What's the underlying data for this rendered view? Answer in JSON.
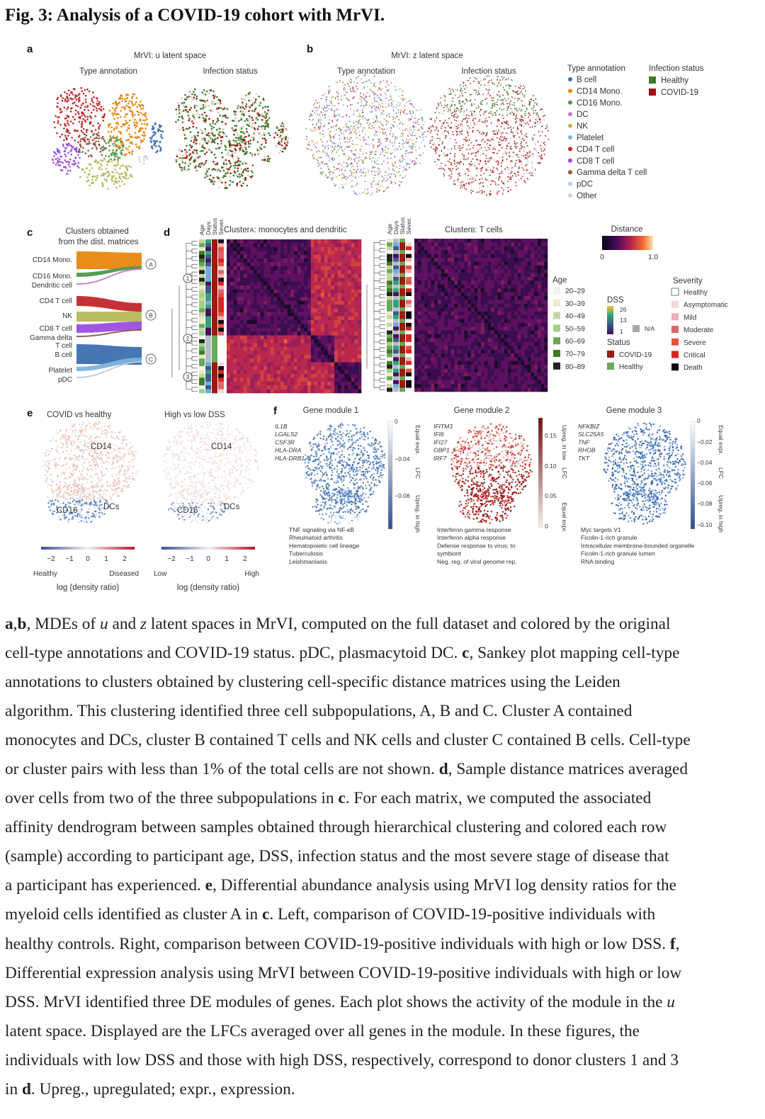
{
  "title": "Fig. 3: Analysis of a COVID-19 cohort with MrVI.",
  "panel_a": {
    "letter": "a",
    "title": "MrVI: u latent space",
    "sub1": "Type annotation",
    "sub2": "Infection status"
  },
  "panel_b": {
    "letter": "b",
    "title": "MrVI: z latent space",
    "sub1": "Type annotation",
    "sub2": "Infection status"
  },
  "legend_type": {
    "title": "Type annotation",
    "items": [
      {
        "label": "B cell",
        "color": "#3c6fb0"
      },
      {
        "label": "CD14 Mono.",
        "color": "#e8860f"
      },
      {
        "label": "CD16 Mono.",
        "color": "#4e9a4e"
      },
      {
        "label": "DC",
        "color": "#c77cc0"
      },
      {
        "label": "NK",
        "color": "#b5b85a"
      },
      {
        "label": "Platelet",
        "color": "#7fb2d9"
      },
      {
        "label": "CD4 T cell",
        "color": "#c0282b"
      },
      {
        "label": "CD8 T cell",
        "color": "#9b4de0"
      },
      {
        "label": "Gamma delta T cell",
        "color": "#8b5a4a"
      },
      {
        "label": "pDC",
        "color": "#b8c8e8"
      },
      {
        "label": "Other",
        "color": "#cfcfcf"
      }
    ]
  },
  "legend_infection": {
    "title": "Infection status",
    "items": [
      {
        "label": "Healthy",
        "color": "#3d7a2a"
      },
      {
        "label": "COVID-19",
        "color": "#a01010"
      }
    ]
  },
  "panel_c": {
    "letter": "c",
    "title_line1": "Clusters obtained",
    "title_line2": "from the dist. matrices",
    "labels": [
      "CD14 Mono.",
      "CD16 Mono.",
      "Dendritic cell",
      "CD4 T cell",
      "NK",
      "CD8 T cell",
      "Gamma delta",
      "T cell",
      "B cell",
      "Platelet",
      "pDC"
    ],
    "clusters": [
      "A",
      "B",
      "C"
    ]
  },
  "panel_d": {
    "letter": "d",
    "columns": [
      "Age",
      "Days",
      "Status",
      "Sever."
    ],
    "title1_pre": "Cluster",
    "title1_cluster": "A",
    "title1_post": ": monocytes and dendritic",
    "title2_pre": "Cluster",
    "title2_cluster": "B",
    "title2_post": ": T cells",
    "donor_clusters": [
      "1",
      "2",
      "3"
    ]
  },
  "distance_legend": {
    "title": "Distance",
    "min": "0",
    "max": "1.0"
  },
  "age_legend": {
    "title": "Age",
    "items": [
      {
        "label": "20–29",
        "color": "#f2f2ee"
      },
      {
        "label": "30–39",
        "color": "#ecebc8"
      },
      {
        "label": "40–49",
        "color": "#c7d4a2"
      },
      {
        "label": "50–59",
        "color": "#9fd18a"
      },
      {
        "label": "60–69",
        "color": "#6aa85a"
      },
      {
        "label": "70–79",
        "color": "#3f7a2a"
      },
      {
        "label": "80–89",
        "color": "#222222"
      }
    ]
  },
  "dss_legend": {
    "title": "DSS",
    "ticks": [
      "26",
      "13",
      "1"
    ],
    "na": "N/A"
  },
  "status_legend": {
    "title": "Status",
    "items": [
      {
        "label": "COVID-19",
        "color": "#9c1a0e"
      },
      {
        "label": "Healthy",
        "color": "#6aa85a"
      }
    ]
  },
  "severity_legend": {
    "title": "Severity",
    "items": [
      {
        "label": "Healthy",
        "color": "#ffffff"
      },
      {
        "label": "Asymptomatic",
        "color": "#f2d9d4"
      },
      {
        "label": "Mild",
        "color": "#eeb0b4"
      },
      {
        "label": "Moderate",
        "color": "#d9666e"
      },
      {
        "label": "Severe",
        "color": "#e05340"
      },
      {
        "label": "Critical",
        "color": "#d92424"
      },
      {
        "label": "Death",
        "color": "#140514"
      }
    ]
  },
  "panel_e": {
    "letter": "e",
    "left": {
      "title": "COVID vs healthy",
      "ticks": [
        "−2",
        "−1",
        "0",
        "1",
        "2"
      ],
      "low": "Healthy",
      "high": "Diseased",
      "xlabel": "log (density ratio)",
      "regions": [
        "CD14",
        "CD16",
        "DCs"
      ]
    },
    "right": {
      "title": "High vs low DSS",
      "ticks": [
        "−2",
        "−1",
        "0",
        "1",
        "2"
      ],
      "low": "Low",
      "high": "High",
      "xlabel": "log (density ratio)",
      "regions": [
        "CD14",
        "CD16",
        "DCs"
      ]
    }
  },
  "panel_f": {
    "letter": "f",
    "modules": [
      {
        "title": "Gene module 1",
        "genes": [
          "IL1B",
          "LGALS2",
          "CSF3R",
          "HLA-DRA",
          "HLA-DRB1"
        ],
        "ticks": [
          "0",
          "−0.04",
          "−0.08"
        ],
        "axis": [
          "Equal expr.",
          "LFC",
          "Upreg. in high"
        ],
        "terms": [
          "TNF signaling via NF-κB",
          "Rheumatoid arthritis",
          "Hematopoietic cell lineage",
          "Tuberculosis",
          "Leishmaniasis"
        ]
      },
      {
        "title": "Gene module 2",
        "genes": [
          "IFITM3",
          "IFI6",
          "IFI27",
          "GBP1",
          "IRF7"
        ],
        "ticks": [
          "0.15",
          "0.10",
          "0.05",
          "0"
        ],
        "axis": [
          "Upreg. in low",
          "LFC",
          "Equal expr."
        ],
        "terms": [
          "Interferon gamma response",
          "Interferon alpha response",
          "Defense response to virus; to",
          "symbiont",
          "Neg. reg. of viral genome rep."
        ]
      },
      {
        "title": "Gene module 3",
        "genes": [
          "NFKBIZ",
          "SLC25A5",
          "TNF",
          "RHOB",
          "TKT"
        ],
        "ticks": [
          "0",
          "−0.02",
          "−0.04",
          "−0.06",
          "−0.08",
          "−0.10"
        ],
        "axis": [
          "Equal expr.",
          "LFC",
          "Upreg. in high"
        ],
        "terms": [
          "Myc targets V1",
          "Ficolin-1-rich granule",
          "Intracellular membrane-bounded organelle",
          "Ficolin-1-rich granule lumen",
          "RNA binding"
        ]
      }
    ]
  },
  "caption_lines": [
    [
      [
        "a",
        "b"
      ],
      [
        ",",
        ""
      ],
      [
        "b",
        "b"
      ],
      [
        ", MDEs of ",
        ""
      ],
      [
        "u",
        "i"
      ],
      [
        " and ",
        ""
      ],
      [
        "z",
        "i"
      ],
      [
        " latent spaces in MrVI, computed on the full dataset and colored by the original",
        ""
      ]
    ],
    [
      [
        "cell-type annotations and COVID-19 status. pDC, plasmacytoid DC. ",
        ""
      ],
      [
        "c",
        "b"
      ],
      [
        ", Sankey plot mapping cell-type",
        ""
      ]
    ],
    [
      [
        "annotations to clusters obtained by clustering cell-specific distance matrices using the Leiden",
        ""
      ]
    ],
    [
      [
        "algorithm. This clustering identified three cell subpopulations, A, B and C. Cluster A contained",
        ""
      ]
    ],
    [
      [
        "monocytes and DCs, cluster B contained T cells and NK cells and cluster C contained B cells. Cell-type",
        ""
      ]
    ],
    [
      [
        "or cluster pairs with less than 1% of the total cells are not shown. ",
        ""
      ],
      [
        "d",
        "b"
      ],
      [
        ", Sample distance matrices averaged",
        ""
      ]
    ],
    [
      [
        "over cells from two of the three subpopulations in ",
        ""
      ],
      [
        "c",
        "b"
      ],
      [
        ". For each matrix, we computed the associated",
        ""
      ]
    ],
    [
      [
        "affinity dendrogram between samples obtained through hierarchical clustering and colored each row",
        ""
      ]
    ],
    [
      [
        "(sample) according to participant age, DSS, infection status and the most severe stage of disease that",
        ""
      ]
    ],
    [
      [
        "a participant has experienced. ",
        ""
      ],
      [
        "e",
        "b"
      ],
      [
        ", Differential abundance analysis using MrVI log density ratios for the",
        ""
      ]
    ],
    [
      [
        "myeloid cells identified as cluster A in ",
        ""
      ],
      [
        "c",
        "b"
      ],
      [
        ". Left, comparison of COVID-19-positive individuals with",
        ""
      ]
    ],
    [
      [
        "healthy controls. Right, comparison between COVID-19-positive individuals with high or low DSS. ",
        ""
      ],
      [
        "f",
        "b"
      ],
      [
        ",",
        ""
      ]
    ],
    [
      [
        "Differential expression analysis using MrVI between COVID-19-positive individuals with high or low",
        ""
      ]
    ],
    [
      [
        "DSS. MrVI identified three DE modules of genes. Each plot shows the activity of the module in the ",
        ""
      ],
      [
        "u",
        "i"
      ]
    ],
    [
      [
        "latent space. Displayed are the LFCs averaged over all genes in the module. In these figures, the",
        ""
      ]
    ],
    [
      [
        "individuals with low DSS and those with high DSS, respectively, correspond to donor clusters 1 and 3",
        ""
      ]
    ],
    [
      [
        "in ",
        ""
      ],
      [
        "d",
        "b"
      ],
      [
        ". Upreg., upregulated; expr., expression.",
        ""
      ]
    ]
  ]
}
